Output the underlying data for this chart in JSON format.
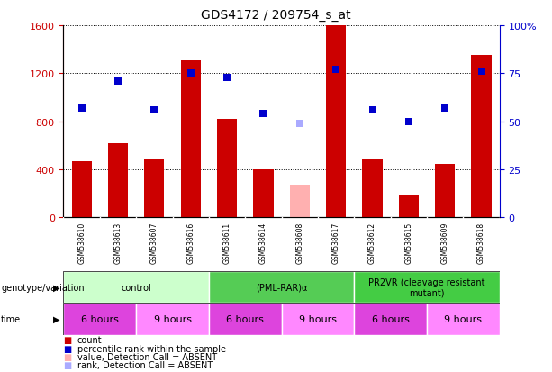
{
  "title": "GDS4172 / 209754_s_at",
  "samples": [
    "GSM538610",
    "GSM538613",
    "GSM538607",
    "GSM538616",
    "GSM538611",
    "GSM538614",
    "GSM538608",
    "GSM538617",
    "GSM538612",
    "GSM538615",
    "GSM538609",
    "GSM538618"
  ],
  "bar_values": [
    470,
    620,
    490,
    1310,
    820,
    400,
    270,
    1600,
    480,
    190,
    445,
    1350
  ],
  "bar_absent": [
    false,
    false,
    false,
    false,
    false,
    false,
    true,
    false,
    false,
    false,
    false,
    false
  ],
  "percentile_values": [
    57,
    71,
    56,
    75,
    73,
    54,
    49,
    77,
    56,
    50,
    57,
    76
  ],
  "percentile_absent": [
    false,
    false,
    false,
    false,
    false,
    false,
    true,
    false,
    false,
    false,
    false,
    false
  ],
  "bar_color": "#cc0000",
  "bar_absent_color": "#ffb0b0",
  "dot_color": "#0000cc",
  "dot_absent_color": "#aaaaff",
  "ylim_left": [
    0,
    1600
  ],
  "ylim_right": [
    0,
    100
  ],
  "yticks_left": [
    0,
    400,
    800,
    1200,
    1600
  ],
  "yticks_right": [
    0,
    25,
    50,
    75,
    100
  ],
  "ytick_labels_right": [
    "0",
    "25",
    "50",
    "75",
    "100%"
  ],
  "groups": [
    {
      "label": "control",
      "start": 0,
      "end": 4,
      "color": "#ccffcc"
    },
    {
      "label": "(PML-RAR)α",
      "start": 4,
      "end": 8,
      "color": "#55cc55"
    },
    {
      "label": "PR2VR (cleavage resistant\nmutant)",
      "start": 8,
      "end": 12,
      "color": "#44cc44"
    }
  ],
  "time_groups": [
    {
      "label": "6 hours",
      "start": 0,
      "end": 2,
      "color": "#dd44dd"
    },
    {
      "label": "9 hours",
      "start": 2,
      "end": 4,
      "color": "#ff88ff"
    },
    {
      "label": "6 hours",
      "start": 4,
      "end": 6,
      "color": "#dd44dd"
    },
    {
      "label": "9 hours",
      "start": 6,
      "end": 8,
      "color": "#ff88ff"
    },
    {
      "label": "6 hours",
      "start": 8,
      "end": 10,
      "color": "#dd44dd"
    },
    {
      "label": "9 hours",
      "start": 10,
      "end": 12,
      "color": "#ff88ff"
    }
  ],
  "legend_items": [
    {
      "label": "count",
      "color": "#cc0000"
    },
    {
      "label": "percentile rank within the sample",
      "color": "#0000cc"
    },
    {
      "label": "value, Detection Call = ABSENT",
      "color": "#ffb0b0"
    },
    {
      "label": "rank, Detection Call = ABSENT",
      "color": "#aaaaff"
    }
  ],
  "bar_width": 0.55,
  "dot_size": 40,
  "left_axis_color": "#cc0000",
  "right_axis_color": "#0000cc",
  "title_fontsize": 10,
  "genotype_label": "genotype/variation",
  "time_label": "time"
}
